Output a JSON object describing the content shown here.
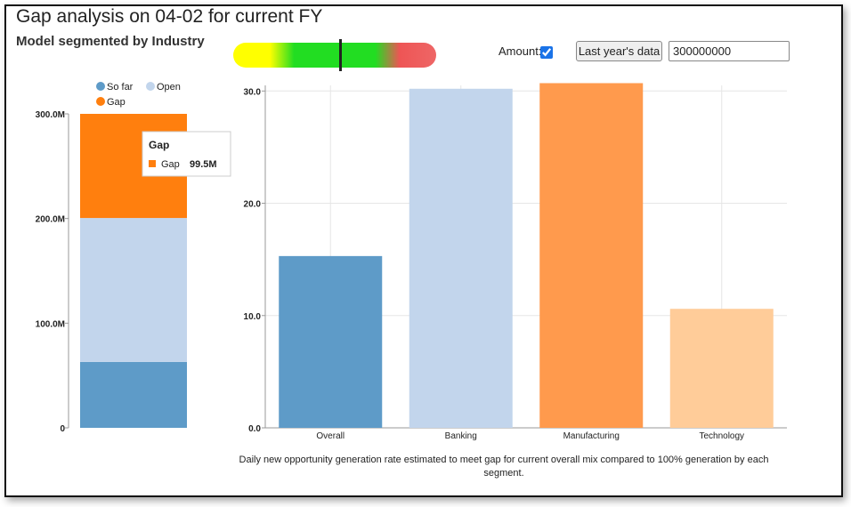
{
  "page": {
    "title": "Gap analysis on 04-02 for current FY",
    "subtitle": "Model segmented by Industry"
  },
  "gauge": {
    "colors": [
      "#ffff00",
      "#22dd22",
      "#ee5555"
    ],
    "indicator_fraction": 0.53
  },
  "controls": {
    "amount_label": "Amount:",
    "amount_checked": true,
    "last_year_button": "Last year's data",
    "amount_value": "300000000"
  },
  "caption": "Daily new opportunity generation rate estimated to meet gap for current overall mix compared to 100% generation by each segment.",
  "chart_data": [
    {
      "type": "bar",
      "stacked": true,
      "categories": [
        ""
      ],
      "series": [
        {
          "name": "So far",
          "values": [
            63000000
          ],
          "color": "#5e9bc8"
        },
        {
          "name": "Open",
          "values": [
            137500000
          ],
          "color": "#c2d5ec"
        },
        {
          "name": "Gap",
          "values": [
            99500000
          ],
          "color": "#ff7f0e"
        }
      ],
      "yticks": [
        "0",
        "100.0M",
        "200.0M",
        "300.0M"
      ],
      "ylim": [
        0,
        300000000
      ],
      "legend": "top",
      "tooltip": {
        "title": "Gap",
        "series": "Gap",
        "value": "99.5M",
        "color": "#ff7f0e"
      }
    },
    {
      "type": "bar",
      "categories": [
        "Overall",
        "Banking",
        "Manufacturing",
        "Technology"
      ],
      "values": [
        15.3,
        30.2,
        30.7,
        10.6
      ],
      "colors": [
        "#5e9bc8",
        "#c2d5ec",
        "#ff9a4d",
        "#ffcc99"
      ],
      "yticks": [
        "0.0",
        "10.0",
        "20.0",
        "30.0"
      ],
      "ylim": [
        0,
        30.5
      ],
      "grid": true
    }
  ]
}
